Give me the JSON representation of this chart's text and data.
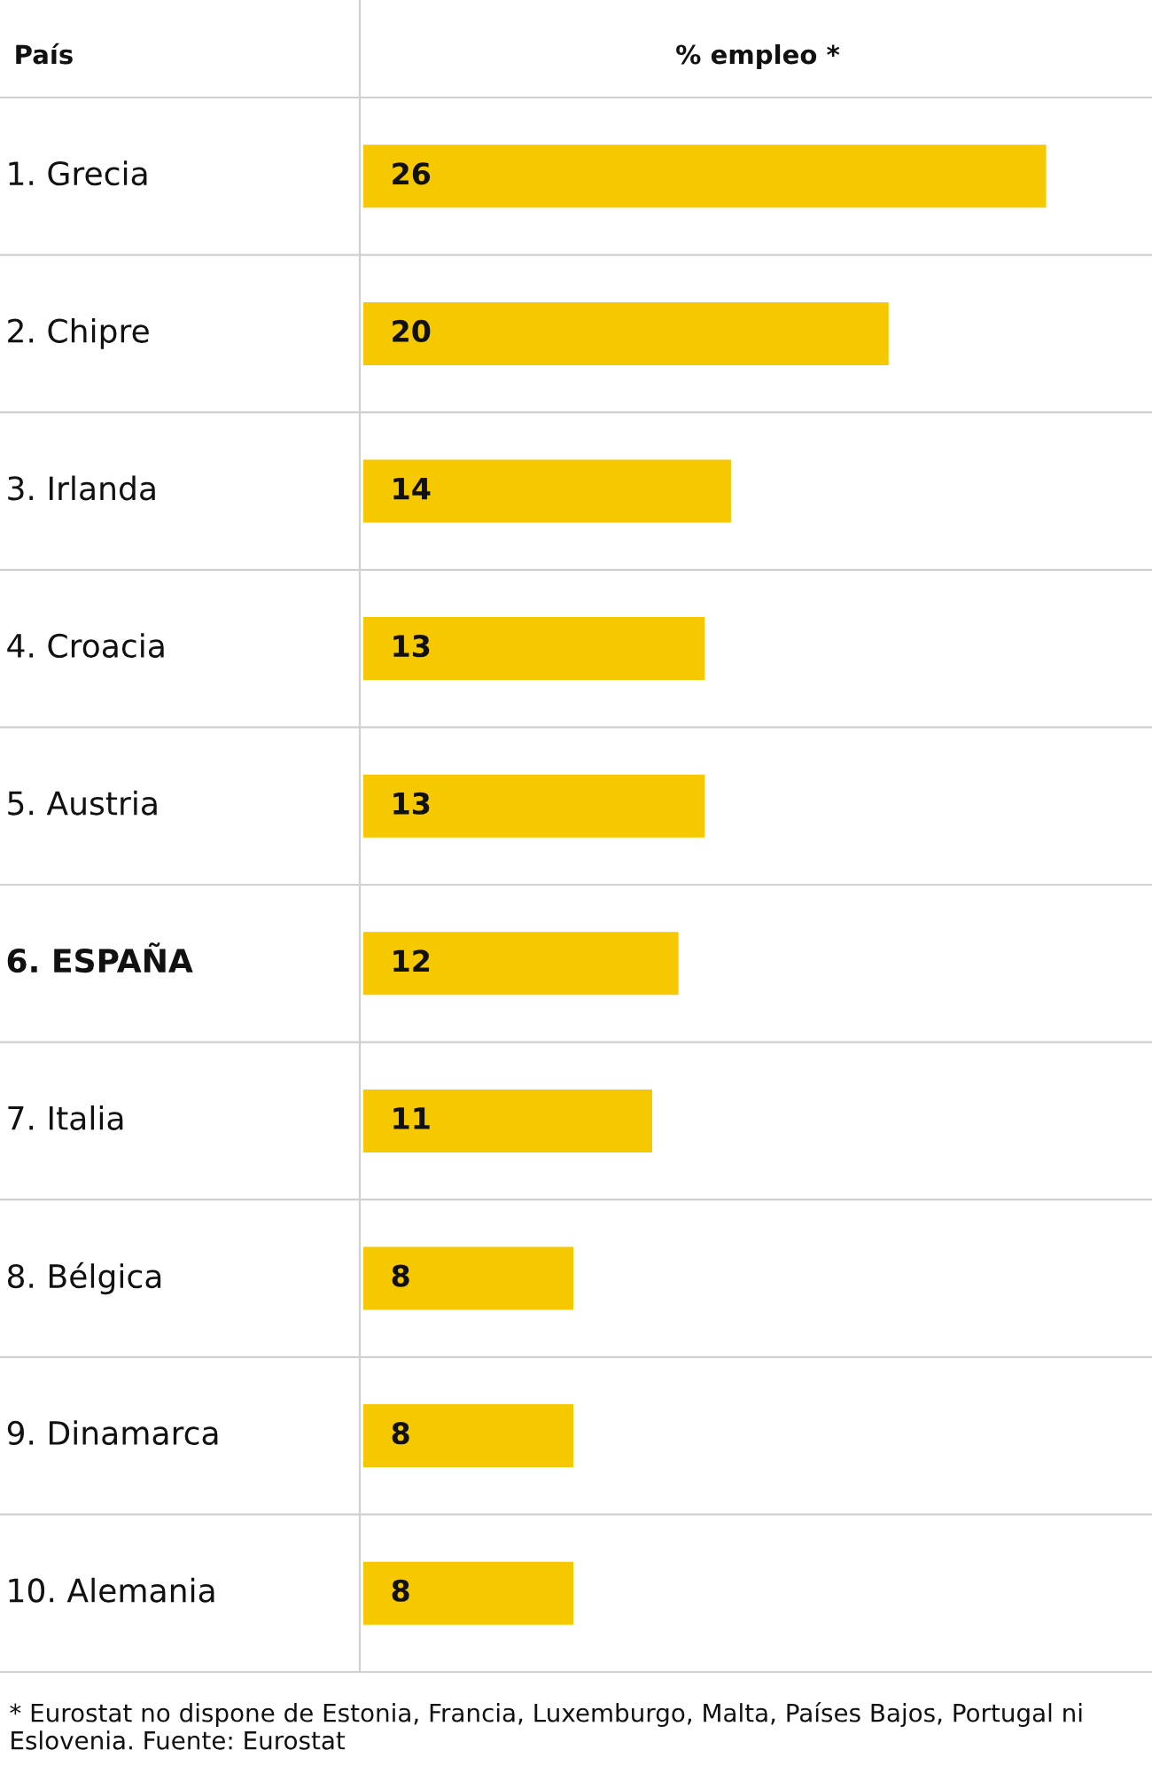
{
  "chart_data": {
    "type": "bar",
    "orientation": "horizontal",
    "xlabel": "% empleo *",
    "categories": [
      "1. Grecia",
      "2. Chipre",
      "3. Irlanda",
      "4. Croacia",
      "5. Austria",
      "6. ESPAÑA",
      "7. Italia",
      "8. Bélgica",
      "9. Dinamarca",
      "10. Alemania"
    ],
    "values": [
      26,
      20,
      14,
      13,
      13,
      12,
      11,
      8,
      8,
      8
    ],
    "color": "#f5c800",
    "data_labels": true,
    "grid": true,
    "annotations": [
      "País",
      "* Eurostat no dispone de Estonia, Francia, Luxemburgo, Malta, Países Bajos, Portugal ni Eslovenia. Fuente: Eurostat"
    ]
  }
}
